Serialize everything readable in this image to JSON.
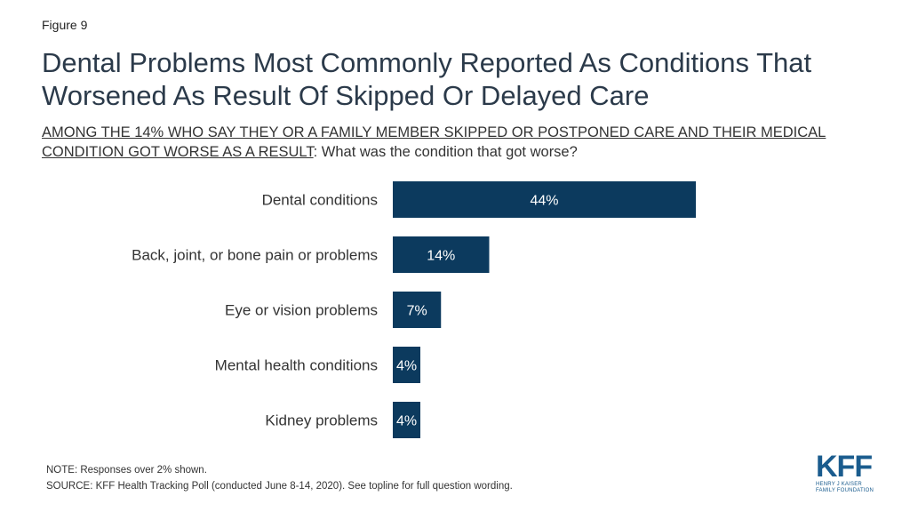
{
  "figure_label": "Figure 9",
  "title": "Dental Problems Most Commonly Reported As Conditions That Worsened As Result Of Skipped Or Delayed Care",
  "subtitle_underlined": "AMONG THE 14% WHO SAY THEY OR A FAMILY MEMBER SKIPPED OR POSTPONED CARE AND THEIR MEDICAL CONDITION GOT WORSE AS A RESULT",
  "subtitle_rest": ": What was the condition that got worse?",
  "colors": {
    "bar": "#0c3a5e",
    "bar_label": "#ffffff",
    "category_label": "#333333",
    "logo": "#1a5c8e"
  },
  "chart_data": {
    "type": "bar",
    "orientation": "horizontal",
    "categories": [
      "Dental conditions",
      "Back, joint, or bone pain or problems",
      "Eye or vision problems",
      "Mental health conditions",
      "Kidney problems"
    ],
    "values": [
      44,
      14,
      7,
      4,
      4
    ],
    "data_labels": [
      "44%",
      "14%",
      "7%",
      "4%",
      "4%"
    ],
    "unit": "%",
    "xlim": [
      0,
      44
    ],
    "grid": false,
    "legend": "none"
  },
  "footer": {
    "note": "NOTE: Responses over 2% shown.",
    "source": "SOURCE: KFF Health Tracking Poll (conducted June 8-14, 2020). See topline for full question wording."
  },
  "logo": {
    "mark": "KFF",
    "line1": "HENRY J KAISER",
    "line2": "FAMILY FOUNDATION"
  }
}
